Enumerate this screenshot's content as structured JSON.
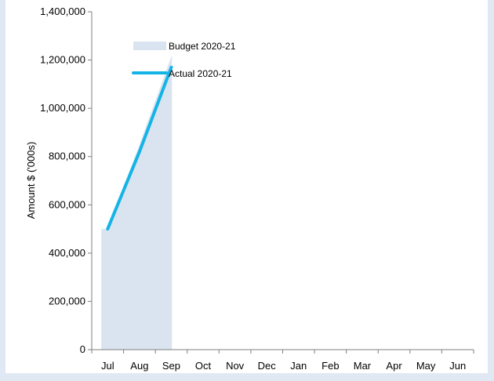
{
  "chart_data": {
    "type": "area",
    "categories": [
      "Jul",
      "Aug",
      "Sep",
      "Oct",
      "Nov",
      "Dec",
      "Jan",
      "Feb",
      "Mar",
      "Apr",
      "May",
      "Jun"
    ],
    "series": [
      {
        "name": "Budget 2020-21",
        "kind": "area",
        "color": "#dae4f0",
        "values": [
          500000,
          850000,
          1215000,
          null,
          null,
          null,
          null,
          null,
          null,
          null,
          null,
          null
        ]
      },
      {
        "name": "Actual 2020-21",
        "kind": "line",
        "color": "#14b4e6",
        "values": [
          500000,
          820000,
          1170000,
          null,
          null,
          null,
          null,
          null,
          null,
          null,
          null,
          null
        ]
      }
    ],
    "ylabel": "Amount $ ('000s)",
    "xlabel": "",
    "ylim": [
      0,
      1400000
    ],
    "yticks": [
      0,
      200000,
      400000,
      600000,
      800000,
      1000000,
      1200000,
      1400000
    ],
    "ytick_labels": [
      "0",
      "200,000",
      "400,000",
      "600,000",
      "800,000",
      "1,000,000",
      "1,200,000",
      "1,400,000"
    ],
    "grid": false,
    "legend_position": "top-left inside plot"
  }
}
